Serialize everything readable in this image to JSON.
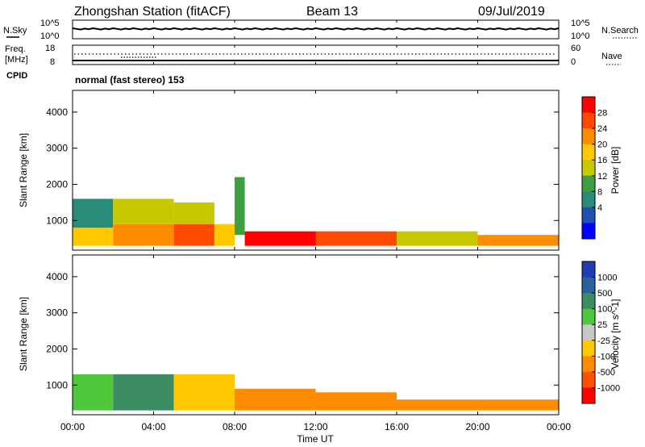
{
  "header": {
    "station": "Zhongshan Station (fitACF)",
    "beam": "Beam 13",
    "date": "09/Jul/2019"
  },
  "aux_panels": {
    "nsky_label": "N.Sky",
    "nsearch_label": "N.Search",
    "freq_label": "Freq.",
    "freq_unit": "[MHz]",
    "nave_label": "Nave",
    "cpid_label": "CPID",
    "cpid_text": "normal (fast stereo) 153",
    "noise_ticks_left": [
      "10^5",
      "10^0"
    ],
    "noise_ticks_right": [
      "10^5",
      "10^0"
    ],
    "freq_ticks": [
      "18",
      "8"
    ],
    "nave_ticks": [
      "60",
      "0"
    ]
  },
  "x_axis": {
    "label": "Time UT",
    "ticks": [
      "00:00",
      "04:00",
      "08:00",
      "12:00",
      "16:00",
      "20:00",
      "00:00"
    ]
  },
  "power_panel": {
    "ylabel": "Slant Range [km]",
    "yticks": [
      "4000",
      "3000",
      "2000",
      "1000"
    ],
    "colorbar_label": "Power [dB]",
    "colorbar_ticks": [
      "28",
      "24",
      "20",
      "16",
      "12",
      "8",
      "4"
    ],
    "colors": [
      "#ff0000",
      "#ff4800",
      "#ff8c00",
      "#ffc800",
      "#c8c800",
      "#3ca040",
      "#288c78",
      "#1e50b4",
      "#0000ff"
    ]
  },
  "velocity_panel": {
    "ylabel": "Slant Range [km]",
    "yticks": [
      "4000",
      "3000",
      "2000",
      "1000"
    ],
    "colorbar_label": "Velocity [m s^-1]",
    "colorbar_ticks": [
      "1000",
      "500",
      "100",
      "25",
      "-25",
      "-100",
      "-500",
      "-1000"
    ],
    "colors": [
      "#1e3cb4",
      "#2860a0",
      "#3c8c64",
      "#50c83c",
      "#c8c8c8",
      "#ffc800",
      "#ff8c00",
      "#ff5000",
      "#ff0000"
    ]
  },
  "chart_data": [
    {
      "type": "heatmap",
      "title": "Power",
      "xlabel": "Time UT",
      "ylabel": "Slant Range [km]",
      "xlim": [
        0,
        24
      ],
      "ylim": [
        180,
        4600
      ],
      "colorbar": "Power [dB]",
      "clim": [
        0,
        30
      ],
      "segments": [
        {
          "t0": 0.0,
          "t1": 2.0,
          "r0": 300,
          "r1": 800,
          "v": 20
        },
        {
          "t0": 0.0,
          "t1": 2.0,
          "r0": 800,
          "r1": 1600,
          "v": 10
        },
        {
          "t0": 2.0,
          "t1": 5.0,
          "r0": 300,
          "r1": 900,
          "v": 22
        },
        {
          "t0": 2.0,
          "t1": 5.0,
          "r0": 900,
          "r1": 1600,
          "v": 14
        },
        {
          "t0": 5.0,
          "t1": 7.0,
          "r0": 300,
          "r1": 900,
          "v": 26
        },
        {
          "t0": 5.0,
          "t1": 7.0,
          "r0": 900,
          "r1": 1500,
          "v": 14
        },
        {
          "t0": 7.0,
          "t1": 8.0,
          "r0": 300,
          "r1": 900,
          "v": 18
        },
        {
          "t0": 8.0,
          "t1": 8.5,
          "r0": 600,
          "r1": 2200,
          "v": 12
        },
        {
          "t0": 8.5,
          "t1": 12.0,
          "r0": 300,
          "r1": 700,
          "v": 28
        },
        {
          "t0": 12.0,
          "t1": 16.0,
          "r0": 300,
          "r1": 700,
          "v": 24
        },
        {
          "t0": 16.0,
          "t1": 20.0,
          "r0": 300,
          "r1": 700,
          "v": 16
        },
        {
          "t0": 20.0,
          "t1": 24.0,
          "r0": 300,
          "r1": 600,
          "v": 22
        }
      ]
    },
    {
      "type": "heatmap",
      "title": "Velocity",
      "xlabel": "Time UT",
      "ylabel": "Slant Range [km]",
      "xlim": [
        0,
        24
      ],
      "ylim": [
        180,
        4600
      ],
      "colorbar": "Velocity [m s^-1]",
      "clim": [
        -1000,
        1000
      ],
      "segments": [
        {
          "t0": 0.0,
          "t1": 2.0,
          "r0": 300,
          "r1": 1300,
          "v": 80
        },
        {
          "t0": 2.0,
          "t1": 5.0,
          "r0": 300,
          "r1": 1300,
          "v": 100
        },
        {
          "t0": 5.0,
          "t1": 8.0,
          "r0": 300,
          "r1": 1300,
          "v": -100
        },
        {
          "t0": 8.0,
          "t1": 12.0,
          "r0": 300,
          "r1": 900,
          "v": -300
        },
        {
          "t0": 12.0,
          "t1": 16.0,
          "r0": 300,
          "r1": 800,
          "v": -400
        },
        {
          "t0": 16.0,
          "t1": 20.0,
          "r0": 300,
          "r1": 600,
          "v": -200
        },
        {
          "t0": 20.0,
          "t1": 24.0,
          "r0": 300,
          "r1": 600,
          "v": -350
        }
      ]
    }
  ]
}
